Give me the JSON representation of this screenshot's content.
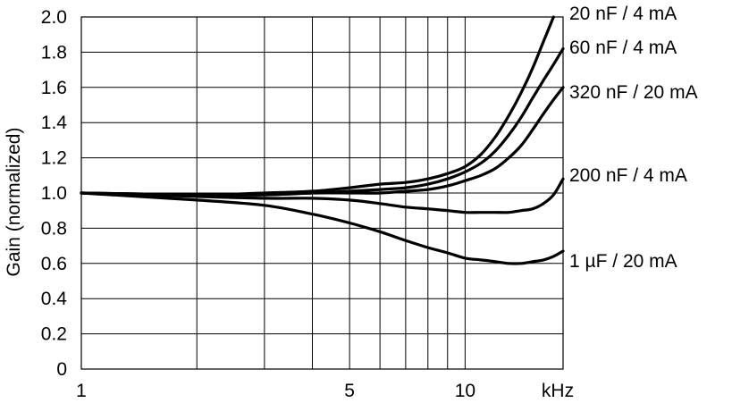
{
  "chart_data": {
    "type": "line",
    "title": "",
    "xlabel": "",
    "x_unit": "kHz",
    "ylabel": "Gain (normalized)",
    "x_scale": "log",
    "xlim": [
      1,
      18
    ],
    "ylim": [
      0,
      2.0
    ],
    "grid": true,
    "x_ticks": [
      1,
      5,
      10
    ],
    "x_tick_labels": [
      "1",
      "5",
      "10"
    ],
    "y_ticks": [
      0,
      0.2,
      0.4,
      0.6,
      0.8,
      1.0,
      1.2,
      1.4,
      1.6,
      1.8,
      2.0
    ],
    "y_tick_labels": [
      "0",
      "0.2",
      "0.4",
      "0.6",
      "0.8",
      "1.0",
      "1.2",
      "1.4",
      "1.6",
      "1.8",
      "2.0"
    ],
    "series": [
      {
        "name": "20 nF / 4 mA",
        "x": [
          1,
          2,
          3,
          4,
          5,
          6,
          7,
          8,
          9,
          10,
          11,
          12,
          13,
          14,
          15,
          16,
          17
        ],
        "y": [
          1.0,
          0.99,
          1.0,
          1.01,
          1.03,
          1.05,
          1.06,
          1.08,
          1.11,
          1.15,
          1.22,
          1.32,
          1.44,
          1.57,
          1.71,
          1.86,
          2.0
        ]
      },
      {
        "name": "60 nF / 4 mA",
        "x": [
          1,
          2,
          3,
          4,
          5,
          6,
          7,
          8,
          9,
          10,
          11,
          12,
          13,
          14,
          15,
          16,
          17,
          18
        ],
        "y": [
          1.0,
          0.99,
          0.99,
          1.0,
          1.01,
          1.02,
          1.03,
          1.05,
          1.08,
          1.12,
          1.17,
          1.24,
          1.33,
          1.43,
          1.54,
          1.64,
          1.73,
          1.82
        ]
      },
      {
        "name": "320 nF / 20 mA",
        "x": [
          1,
          2,
          3,
          4,
          5,
          6,
          7,
          8,
          9,
          10,
          11,
          12,
          13,
          14,
          15,
          16,
          17,
          18
        ],
        "y": [
          1.0,
          0.99,
          0.99,
          1.0,
          1.0,
          1.0,
          1.01,
          1.02,
          1.04,
          1.07,
          1.1,
          1.14,
          1.2,
          1.27,
          1.36,
          1.45,
          1.53,
          1.6
        ]
      },
      {
        "name": "200 nF / 4 mA",
        "x": [
          1,
          2,
          3,
          4,
          5,
          6,
          7,
          8,
          9,
          10,
          11,
          12,
          13,
          14,
          15,
          16,
          17,
          18
        ],
        "y": [
          1.0,
          0.98,
          0.97,
          0.97,
          0.96,
          0.94,
          0.92,
          0.91,
          0.9,
          0.89,
          0.89,
          0.89,
          0.89,
          0.9,
          0.91,
          0.94,
          0.99,
          1.08
        ]
      },
      {
        "name": "1 µF / 20 mA",
        "x": [
          1,
          2,
          3,
          4,
          5,
          6,
          7,
          8,
          9,
          10,
          11,
          12,
          13,
          14,
          15,
          16,
          17,
          18
        ],
        "y": [
          1.0,
          0.96,
          0.93,
          0.88,
          0.83,
          0.78,
          0.73,
          0.69,
          0.66,
          0.63,
          0.62,
          0.61,
          0.6,
          0.6,
          0.61,
          0.62,
          0.64,
          0.67
        ]
      }
    ]
  }
}
